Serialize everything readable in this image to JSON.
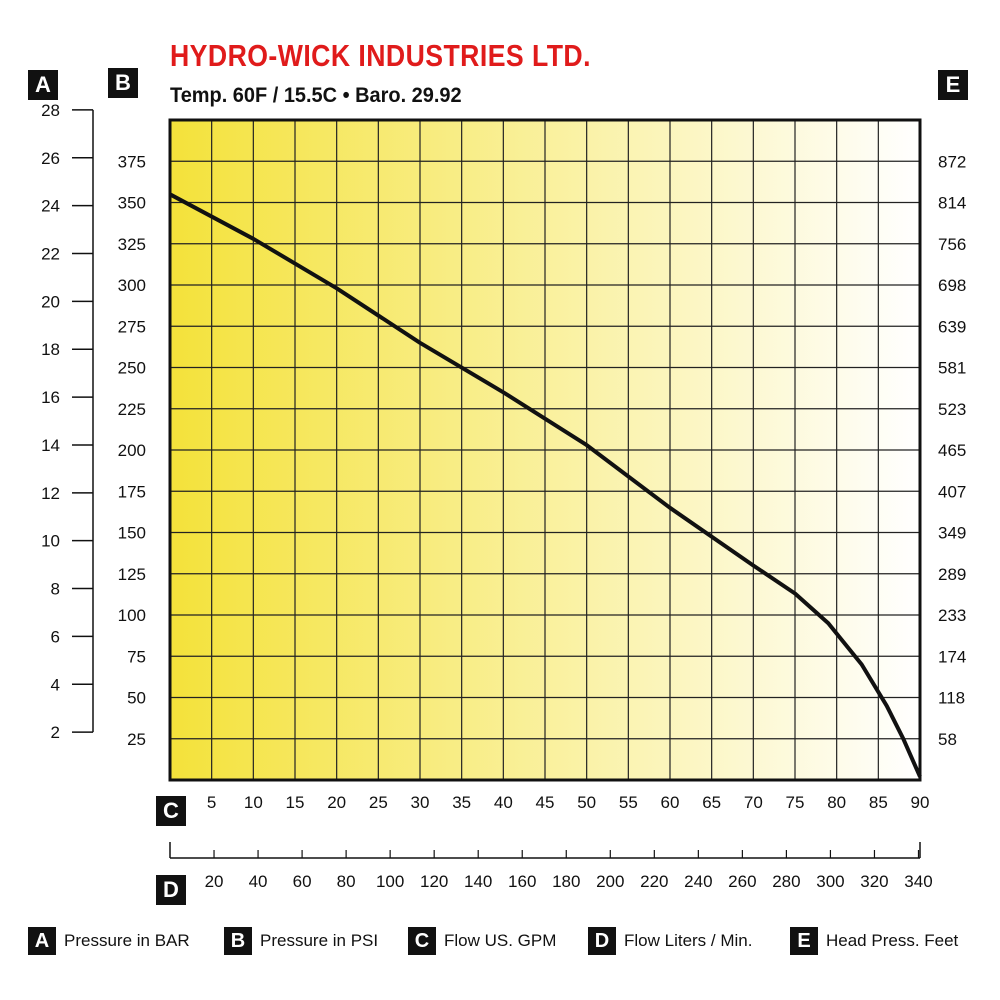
{
  "header": {
    "title": "HYDRO-WICK INDUSTRIES LTD.",
    "subtitle": "Temp. 60F / 15.5C  •  Baro. 29.92"
  },
  "axis_badges": {
    "A": "A",
    "B": "B",
    "C": "C",
    "D": "D",
    "E": "E"
  },
  "legend": [
    {
      "key": "A",
      "label": "Pressure in BAR"
    },
    {
      "key": "B",
      "label": "Pressure in PSI"
    },
    {
      "key": "C",
      "label": "Flow US. GPM"
    },
    {
      "key": "D",
      "label": "Flow Liters / Min."
    },
    {
      "key": "E",
      "label": "Head Press. Feet"
    }
  ],
  "colors": {
    "curve": "#111111",
    "grid": "#222222",
    "fill_left": "#f4e23a",
    "fill_right": "#ffffff"
  },
  "chart_data": {
    "type": "line",
    "title": "HYDRO-WICK INDUSTRIES LTD.",
    "subtitle": "Temp. 60F / 15.5C  •  Baro. 29.92",
    "xlabel": "Flow US. GPM",
    "ylabel": "Pressure in PSI",
    "xlim": [
      0,
      90
    ],
    "ylim": [
      0,
      400
    ],
    "grid": true,
    "x_ticks_gpm": [
      "5",
      "10",
      "15",
      "20",
      "25",
      "30",
      "35",
      "40",
      "45",
      "50",
      "55",
      "60",
      "65",
      "70",
      "75",
      "80",
      "85",
      "90"
    ],
    "x_ticks_lpm": [
      "20",
      "40",
      "60",
      "80",
      "100",
      "120",
      "140",
      "160",
      "180",
      "200",
      "220",
      "240",
      "260",
      "280",
      "300",
      "320",
      "340"
    ],
    "y_ticks_psi": [
      "25",
      "50",
      "75",
      "100",
      "125",
      "150",
      "175",
      "200",
      "225",
      "250",
      "275",
      "300",
      "325",
      "350",
      "375"
    ],
    "y_ticks_bar": [
      "2",
      "4",
      "6",
      "8",
      "10",
      "12",
      "14",
      "16",
      "18",
      "20",
      "22",
      "24",
      "26",
      "28"
    ],
    "y_ticks_head_feet": [
      "58",
      "118",
      "174",
      "233",
      "289",
      "349",
      "407",
      "465",
      "523",
      "581",
      "639",
      "698",
      "756",
      "814",
      "872"
    ],
    "series": [
      {
        "x": [
          0,
          10,
          20,
          30,
          40,
          50,
          60,
          70,
          75,
          79,
          83,
          86,
          88,
          90
        ],
        "y": [
          355,
          328,
          298,
          265,
          235,
          203,
          165,
          130,
          113,
          95,
          70,
          45,
          25,
          2
        ]
      }
    ]
  }
}
